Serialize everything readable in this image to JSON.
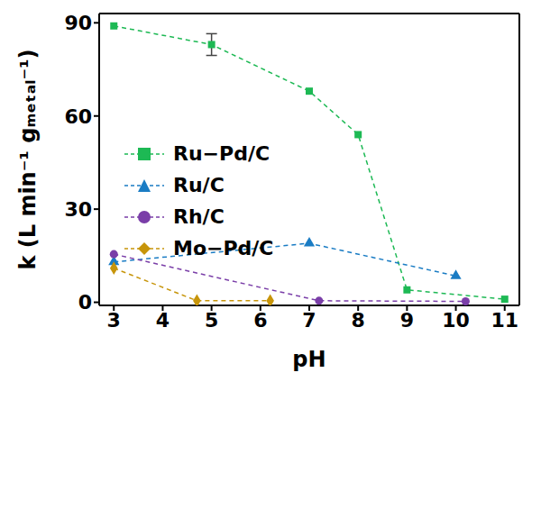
{
  "chart_data": {
    "type": "scatter",
    "x_label": "pH",
    "y_label": "k (L min⁻¹ gₘₑₜₐₗ⁻¹)",
    "xlim": [
      2.7,
      11.3
    ],
    "xticks": [
      3,
      4,
      5,
      6,
      7,
      8,
      9,
      10,
      11
    ],
    "ylim": [
      -1,
      93
    ],
    "yticks": [
      0,
      30,
      60,
      90
    ],
    "legend": "upper left",
    "line_style": "dashed",
    "series": [
      {
        "name": "Ru−Pd/C",
        "color": "#1db954",
        "marker": "square",
        "x": [
          3,
          5,
          7,
          8,
          9,
          11
        ],
        "values": [
          89,
          83,
          68,
          54,
          4,
          1
        ],
        "errors": [
          0,
          3.5,
          0,
          0,
          0,
          0
        ]
      },
      {
        "name": "Ru/C",
        "color": "#1a7cc4",
        "marker": "triangle",
        "x": [
          3,
          7,
          10
        ],
        "values": [
          13,
          19,
          8.5
        ]
      },
      {
        "name": "Rh/C",
        "color": "#7a3ea8",
        "marker": "circle",
        "x": [
          3,
          7.2,
          10.2
        ],
        "values": [
          15.5,
          0.5,
          0.3
        ]
      },
      {
        "name": "Mo−Pd/C",
        "color": "#c7950a",
        "marker": "diamond",
        "x": [
          3,
          4.7,
          6.2
        ],
        "values": [
          11,
          0.5,
          0.5
        ]
      }
    ]
  }
}
